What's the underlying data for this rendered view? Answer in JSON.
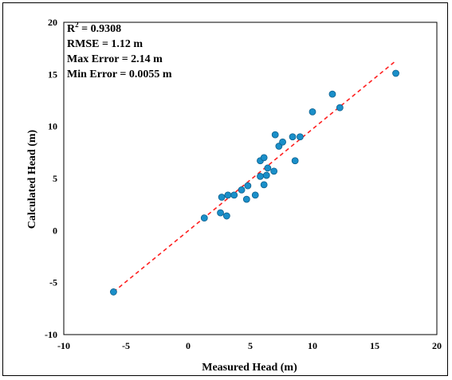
{
  "chart_data": {
    "type": "scatter",
    "xlabel": "Measured Head (m)",
    "ylabel": "Calculated Head (m)",
    "xlim": [
      -10,
      20
    ],
    "ylim": [
      -10,
      20
    ],
    "xticks": [
      "-10",
      "-5",
      "0",
      "5",
      "10",
      "15",
      "20"
    ],
    "yticks": [
      "-10",
      "-5",
      "0",
      "5",
      "10",
      "15",
      "20"
    ],
    "grid": false,
    "annotations": [
      {
        "label": "R",
        "sup": "2",
        "value": " = 0.9308"
      },
      {
        "label": "RMSE = 1.12 m"
      },
      {
        "label": "Max Error = 2.14 m"
      },
      {
        "label": "Min Error = 0.0055 m"
      }
    ],
    "series": [
      {
        "type": "scatter",
        "color": "#1a8fc9",
        "points": [
          [
            -6.0,
            -5.9
          ],
          [
            1.3,
            1.2
          ],
          [
            2.6,
            1.7
          ],
          [
            3.1,
            1.4
          ],
          [
            2.7,
            3.2
          ],
          [
            3.2,
            3.4
          ],
          [
            3.7,
            3.4
          ],
          [
            4.3,
            3.9
          ],
          [
            4.7,
            3.0
          ],
          [
            4.8,
            4.3
          ],
          [
            5.4,
            3.4
          ],
          [
            5.8,
            5.2
          ],
          [
            5.8,
            6.7
          ],
          [
            6.1,
            7.0
          ],
          [
            6.1,
            4.4
          ],
          [
            6.3,
            5.3
          ],
          [
            6.4,
            6.0
          ],
          [
            6.9,
            5.7
          ],
          [
            7.0,
            9.2
          ],
          [
            7.3,
            8.1
          ],
          [
            7.6,
            8.5
          ],
          [
            8.4,
            9.0
          ],
          [
            8.6,
            6.7
          ],
          [
            9.0,
            9.0
          ],
          [
            10.0,
            11.4
          ],
          [
            11.6,
            13.1
          ],
          [
            12.2,
            11.8
          ],
          [
            16.7,
            15.1
          ]
        ]
      }
    ],
    "fit_line": {
      "type": "line",
      "style": "dashed",
      "color": "#ff2020",
      "x": [
        -6.0,
        16.6
      ],
      "y": [
        -5.9,
        16.2
      ]
    }
  }
}
